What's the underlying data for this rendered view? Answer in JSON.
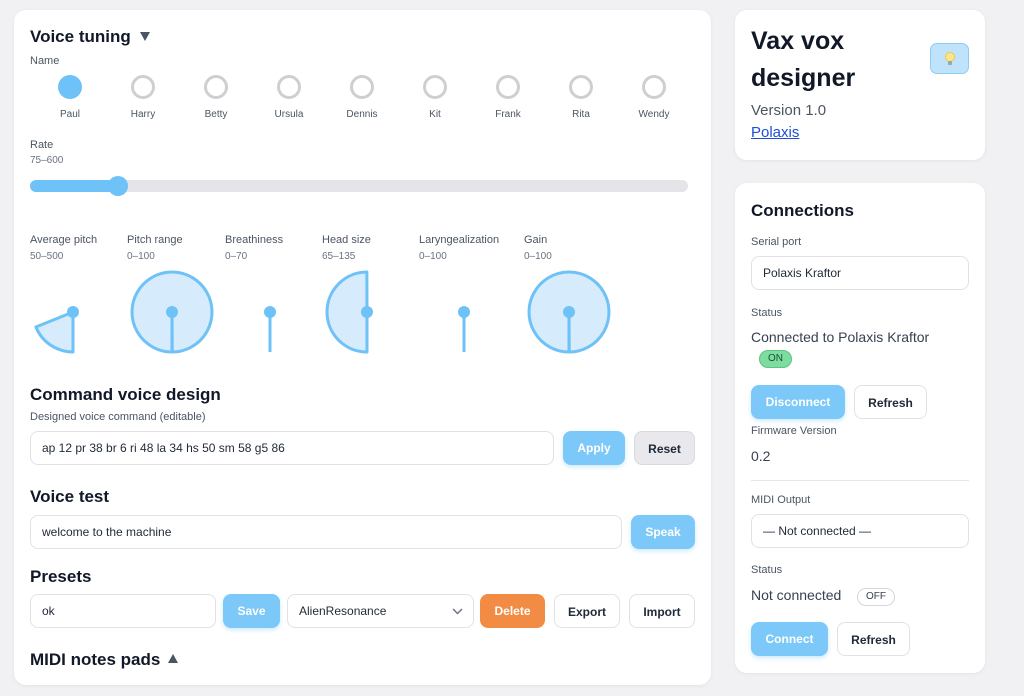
{
  "tuning": {
    "title": "Voice tuning",
    "collapse_icon": "triangle-down-icon",
    "name_label": "Name",
    "voices": [
      "Paul",
      "Harry",
      "Betty",
      "Ursula",
      "Dennis",
      "Kit",
      "Frank",
      "Rita",
      "Wendy"
    ],
    "selected_voice": "Paul",
    "rate": {
      "label": "Rate",
      "range": "75–600",
      "value": 145,
      "min": 75,
      "max": 600
    },
    "knobs": [
      {
        "label": "Average pitch",
        "range": "50–500",
        "value": 135
      },
      {
        "label": "Pitch range",
        "range": "0–100",
        "value": 100
      },
      {
        "label": "Breathiness",
        "range": "0–70",
        "value": 0
      },
      {
        "label": "Head size",
        "range": "65–135",
        "value": 100
      },
      {
        "label": "Laryngealization",
        "range": "0–100",
        "value": 0
      },
      {
        "label": "Gain",
        "range": "0–100",
        "value": 100
      }
    ]
  },
  "command": {
    "title": "Command voice design",
    "field_label": "Designed voice command (editable)",
    "value": "ap 12 pr 38 br 6 ri 48 la 34 hs 50 sm 58 g5 86",
    "apply_label": "Apply",
    "reset_label": "Reset"
  },
  "voice_test": {
    "title": "Voice test",
    "value": "welcome to the machine",
    "speak_label": "Speak"
  },
  "presets": {
    "title": "Presets",
    "name_value": "ok",
    "save_label": "Save",
    "selected": "AlienResonance",
    "delete_label": "Delete",
    "export_label": "Export",
    "import_label": "Import"
  },
  "midi_pads": {
    "title": "MIDI notes pads",
    "expand_icon": "triangle-up-icon"
  },
  "about": {
    "title_line1": "Vax vox",
    "title_line2": "designer",
    "version": "Version 1.0",
    "link": "Polaxis",
    "theme_icon": "lightbulb-icon"
  },
  "connections": {
    "title": "Connections",
    "serial_label": "Serial port",
    "serial_value": "Polaxis Kraftor",
    "status_label": "Status",
    "status_text": "Connected to Polaxis Kraftor",
    "status_badge": "ON",
    "disconnect_label": "Disconnect",
    "refresh_label": "Refresh",
    "firmware_label": "Firmware Version",
    "firmware_value": "0.2",
    "midi_label": "MIDI Output",
    "midi_value": "— Not connected —",
    "midi_status_label": "Status",
    "midi_status_text": "Not connected",
    "midi_status_badge": "OFF",
    "connect_label": "Connect",
    "midi_refresh_label": "Refresh"
  },
  "colors": {
    "accent": "#6ec2f7",
    "knob_fill": "#d6ebfb",
    "danger": "#f28c45",
    "on": "#7ddca0"
  }
}
